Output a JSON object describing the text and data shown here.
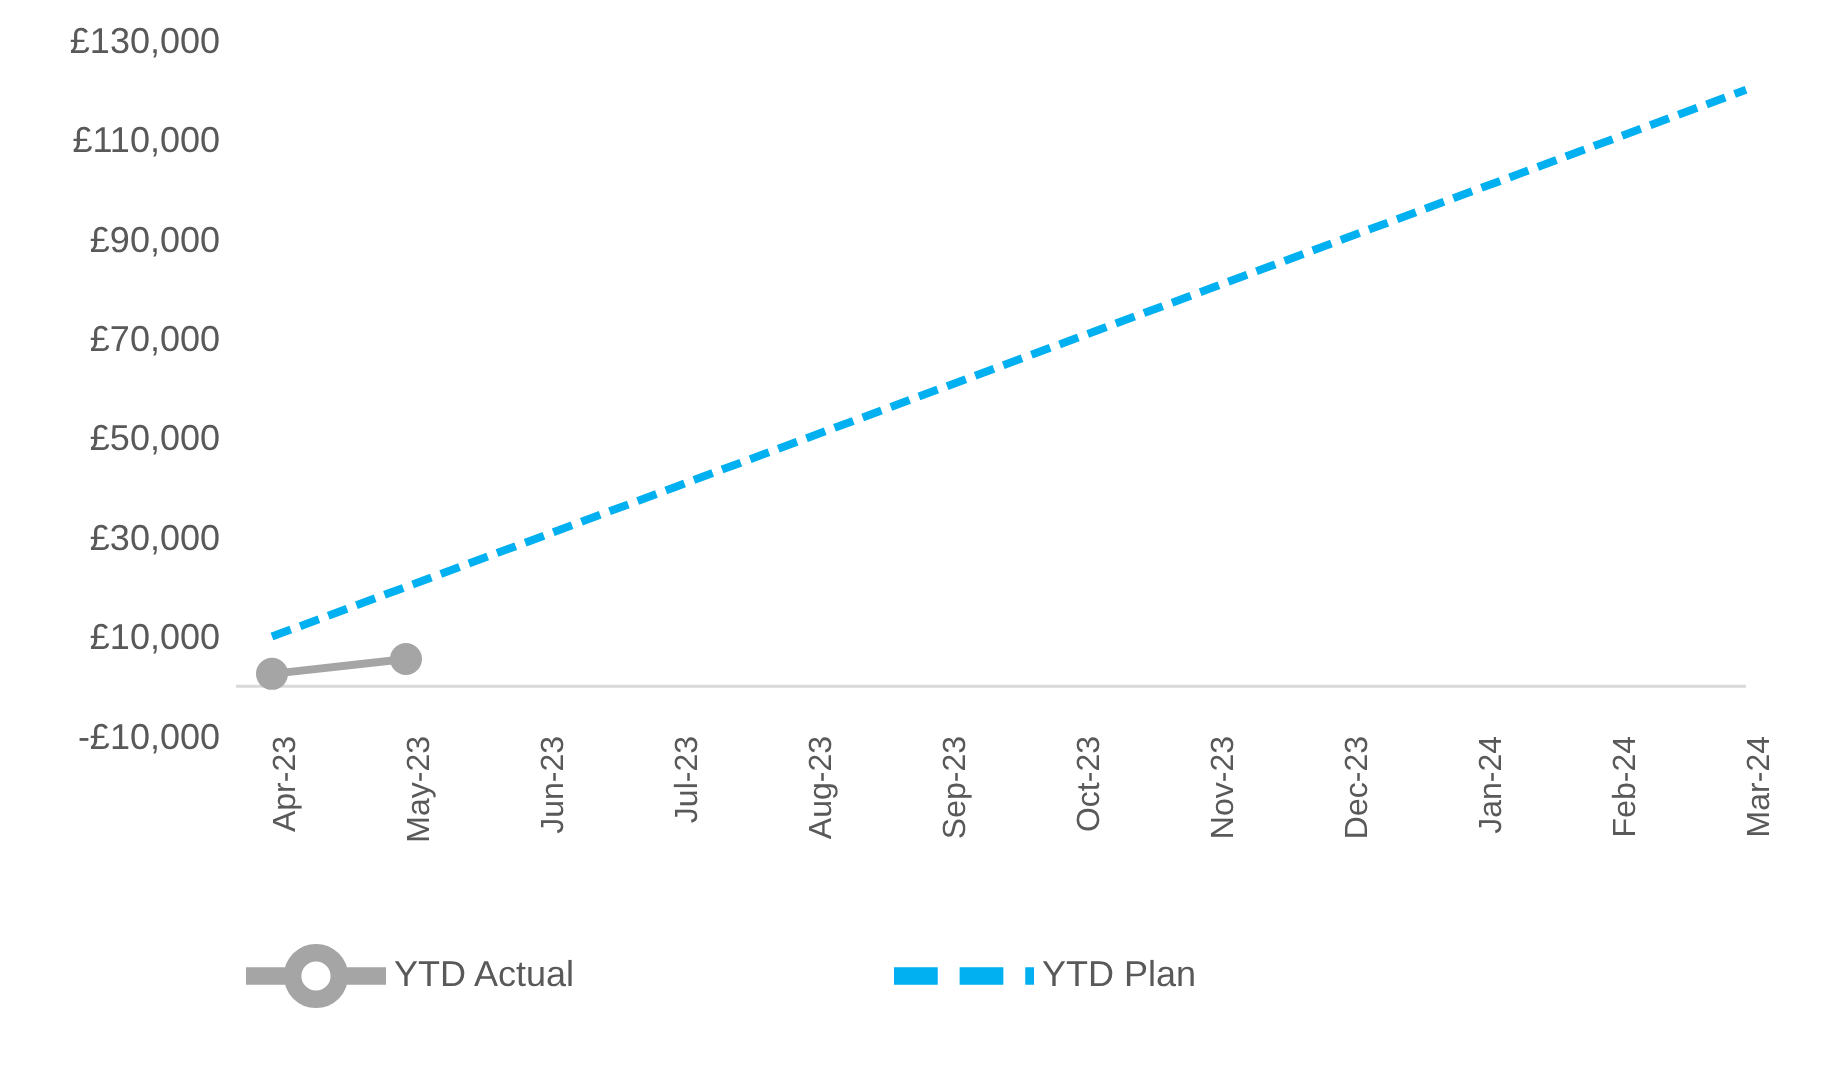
{
  "chart_data": {
    "type": "line",
    "categories": [
      "Apr-23",
      "May-23",
      "Jun-23",
      "Jul-23",
      "Aug-23",
      "Sep-23",
      "Oct-23",
      "Nov-23",
      "Dec-23",
      "Jan-24",
      "Feb-24",
      "Mar-24"
    ],
    "series": [
      {
        "name": "YTD Actual",
        "color": "#a5a5a5",
        "marker": "circle",
        "line_style": "solid",
        "values": [
          2500,
          5500,
          null,
          null,
          null,
          null,
          null,
          null,
          null,
          null,
          null,
          null
        ]
      },
      {
        "name": "YTD Plan",
        "color": "#00b0f0",
        "marker": "none",
        "line_style": "dashed",
        "values": [
          10000,
          20000,
          30000,
          40000,
          50000,
          60000,
          70000,
          80000,
          90000,
          100000,
          110000,
          120000
        ]
      }
    ],
    "ylim": [
      -10000,
      130000
    ],
    "yticks": [
      {
        "value": -10000,
        "label": "-£10,000"
      },
      {
        "value": 10000,
        "label": "£10,000"
      },
      {
        "value": 30000,
        "label": "£30,000"
      },
      {
        "value": 50000,
        "label": "£50,000"
      },
      {
        "value": 70000,
        "label": "£70,000"
      },
      {
        "value": 90000,
        "label": "£90,000"
      },
      {
        "value": 110000,
        "label": "£110,000"
      },
      {
        "value": 130000,
        "label": "£130,000"
      }
    ],
    "grid": false,
    "legend": "bottom"
  }
}
